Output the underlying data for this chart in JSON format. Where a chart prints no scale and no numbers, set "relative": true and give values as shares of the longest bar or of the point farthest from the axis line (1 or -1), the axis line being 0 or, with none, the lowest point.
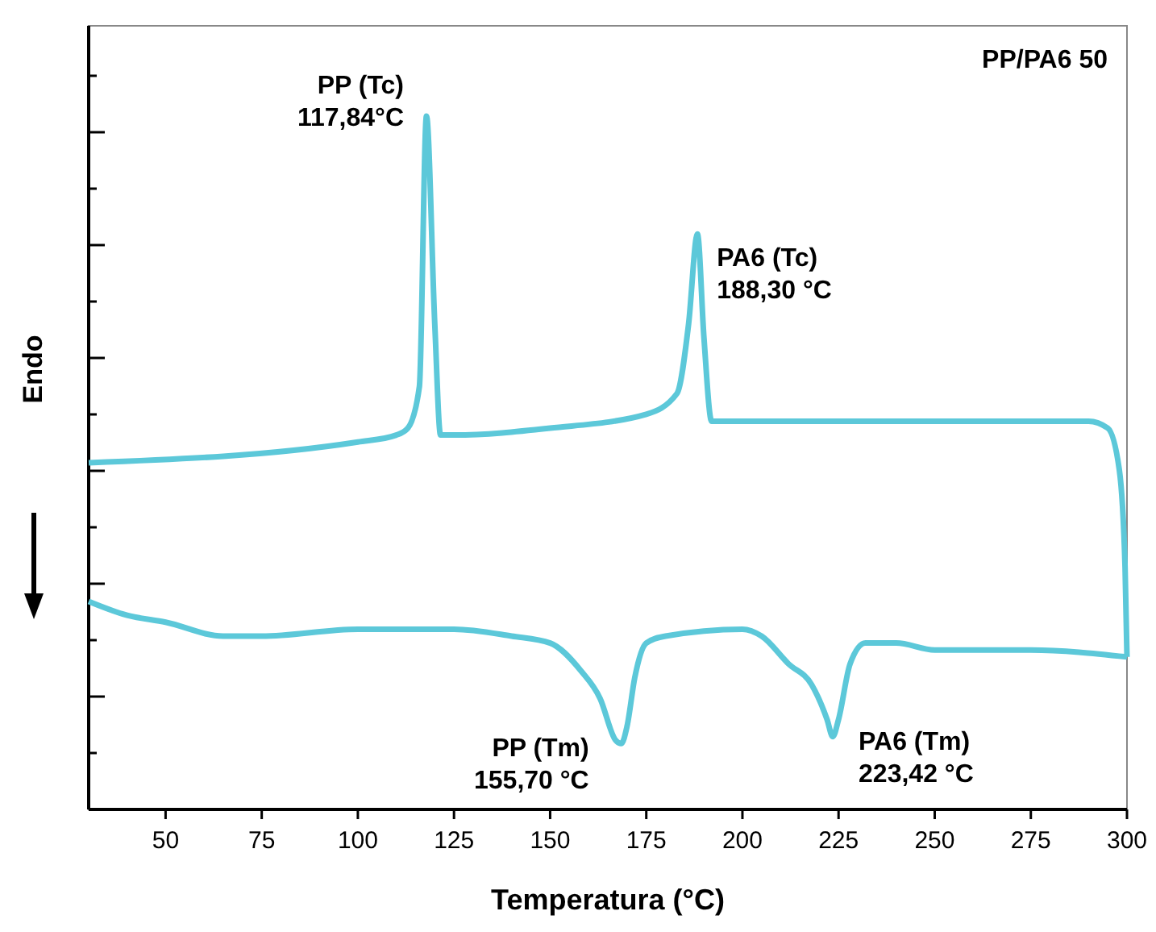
{
  "chart_data": {
    "type": "line",
    "title": "PP/PA6 50",
    "xlabel": "Temperatura (°C)",
    "ylabel": "Endo",
    "relative": true,
    "xlim": [
      30,
      300
    ],
    "xticks": [
      50,
      75,
      100,
      125,
      150,
      175,
      200,
      225,
      250,
      275,
      300
    ],
    "grid": false,
    "marker": "none",
    "line_style": "solid",
    "series": [
      {
        "color": "#5cc8d9",
        "x": [
          30,
          100,
          110,
          113,
          116,
          117.84,
          120,
          121.5,
          125,
          150,
          175,
          183,
          186,
          188.3,
          190,
          192,
          200,
          250,
          275,
          290,
          295,
          298,
          299.5,
          300
        ],
        "values": [
          0.5,
          0.53,
          0.54,
          0.55,
          0.61,
          1.0,
          0.7,
          0.54,
          0.54,
          0.55,
          0.57,
          0.6,
          0.7,
          0.83,
          0.68,
          0.56,
          0.56,
          0.56,
          0.56,
          0.56,
          0.55,
          0.49,
          0.35,
          0.22
        ]
      },
      {
        "color": "#5cc8d9",
        "x": [
          30,
          40,
          50,
          65,
          75,
          100,
          125,
          140,
          150,
          158,
          163,
          167,
          168.5,
          170,
          172,
          175,
          180,
          200,
          205,
          212,
          218,
          222,
          223.5,
          225,
          228,
          232,
          240,
          250,
          275,
          300
        ],
        "values": [
          0.3,
          0.28,
          0.27,
          0.25,
          0.25,
          0.26,
          0.26,
          0.25,
          0.24,
          0.2,
          0.16,
          0.1,
          0.095,
          0.12,
          0.19,
          0.24,
          0.25,
          0.26,
          0.25,
          0.21,
          0.18,
          0.13,
          0.105,
          0.13,
          0.21,
          0.24,
          0.24,
          0.23,
          0.23,
          0.22
        ]
      }
    ],
    "annotations": [
      {
        "text": "PP (Tc)\n117,84°C",
        "x": 117.84,
        "y": 1.0
      },
      {
        "text": "PA6 (Tc)\n188,30 °C",
        "x": 188.3,
        "y": 0.83
      },
      {
        "text": "PP (Tm)\n155,70 °C",
        "x": 168.5,
        "y": 0.095
      },
      {
        "text": "PA6 (Tm)\n223,42 °C",
        "x": 223.5,
        "y": 0.105
      }
    ]
  }
}
